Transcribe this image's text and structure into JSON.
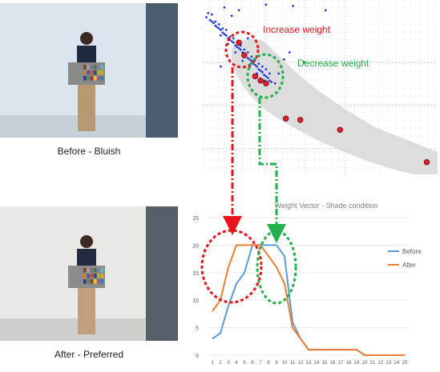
{
  "photos": [
    {
      "caption": "Before - Bluish",
      "tint": "#bcd0e2",
      "wall": "#dbe5ee",
      "floor": "#c6d0d8"
    },
    {
      "caption": "After - Preferred",
      "tint": "#d6d6d2",
      "wall": "#e8e8e4",
      "floor": "#cfcfcb"
    }
  ],
  "annotations": {
    "increase": "Increase weight",
    "decrease": "Decrease weight",
    "increase_color": "#e8141c",
    "decrease_color": "#22b14c"
  },
  "chart_data": [
    {
      "type": "scatter",
      "title": "",
      "xlabel": "",
      "ylabel": "",
      "series": [
        {
          "values_blue": "cluster"
        },
        {
          "red_points": [
            [
              0.3,
              0.33
            ],
            [
              0.33,
              0.42
            ],
            [
              0.39,
              0.57
            ],
            [
              0.42,
              0.6
            ],
            [
              0.45,
              0.62
            ],
            [
              0.56,
              0.87
            ],
            [
              0.64,
              0.88
            ],
            [
              0.86,
              0.95
            ],
            [
              1.34,
              1.18
            ]
          ]
        }
      ],
      "blue_points": [
        [
          0.12,
          0.15
        ],
        [
          0.14,
          0.17
        ],
        [
          0.15,
          0.18
        ],
        [
          0.16,
          0.19
        ],
        [
          0.17,
          0.21
        ],
        [
          0.18,
          0.22
        ],
        [
          0.19,
          0.23
        ],
        [
          0.2,
          0.24
        ],
        [
          0.21,
          0.26
        ],
        [
          0.22,
          0.27
        ],
        [
          0.23,
          0.28
        ],
        [
          0.24,
          0.3
        ],
        [
          0.25,
          0.31
        ],
        [
          0.26,
          0.32
        ],
        [
          0.27,
          0.33
        ],
        [
          0.28,
          0.35
        ],
        [
          0.29,
          0.36
        ],
        [
          0.3,
          0.37
        ],
        [
          0.31,
          0.38
        ],
        [
          0.32,
          0.4
        ],
        [
          0.33,
          0.41
        ],
        [
          0.34,
          0.42
        ],
        [
          0.35,
          0.44
        ],
        [
          0.36,
          0.45
        ],
        [
          0.37,
          0.46
        ],
        [
          0.38,
          0.48
        ],
        [
          0.39,
          0.49
        ],
        [
          0.4,
          0.5
        ],
        [
          0.41,
          0.52
        ],
        [
          0.42,
          0.53
        ],
        [
          0.43,
          0.54
        ],
        [
          0.44,
          0.56
        ],
        [
          0.45,
          0.57
        ],
        [
          0.46,
          0.58
        ],
        [
          0.47,
          0.6
        ],
        [
          0.48,
          0.61
        ],
        [
          0.13,
          0.12
        ],
        [
          0.15,
          0.13
        ],
        [
          0.17,
          0.18
        ],
        [
          0.19,
          0.2
        ],
        [
          0.21,
          0.23
        ],
        [
          0.23,
          0.24
        ],
        [
          0.25,
          0.29
        ],
        [
          0.27,
          0.3
        ],
        [
          0.29,
          0.33
        ],
        [
          0.31,
          0.35
        ],
        [
          0.33,
          0.38
        ],
        [
          0.35,
          0.4
        ],
        [
          0.37,
          0.43
        ],
        [
          0.39,
          0.45
        ],
        [
          0.41,
          0.48
        ],
        [
          0.43,
          0.5
        ],
        [
          0.45,
          0.52
        ],
        [
          0.47,
          0.55
        ],
        [
          0.2,
          0.28
        ],
        [
          0.24,
          0.34
        ],
        [
          0.28,
          0.4
        ],
        [
          0.32,
          0.46
        ],
        [
          0.36,
          0.5
        ],
        [
          0.4,
          0.55
        ],
        [
          0.44,
          0.6
        ],
        [
          0.3,
          0.1
        ],
        [
          0.22,
          0.08
        ],
        [
          0.45,
          0.06
        ],
        [
          0.6,
          0.07
        ],
        [
          0.78,
          0.1
        ],
        [
          0.55,
          0.45
        ],
        [
          0.66,
          0.47
        ],
        [
          0.5,
          0.62
        ],
        [
          0.52,
          0.55
        ],
        [
          0.58,
          0.4
        ],
        [
          0.2,
          0.5
        ],
        [
          0.35,
          0.3
        ],
        [
          0.26,
          0.14
        ]
      ],
      "xlim": [
        0.1,
        1.4
      ],
      "ylim": [
        0.05,
        1.25
      ]
    },
    {
      "type": "line",
      "title": "Weight Vector - Shade condition",
      "xlabel": "",
      "ylabel": "",
      "categories": [
        "1",
        "2",
        "3",
        "4",
        "5",
        "6",
        "7",
        "8",
        "9",
        "10",
        "11",
        "12",
        "13",
        "14",
        "15",
        "16",
        "17",
        "18",
        "19",
        "20",
        "21",
        "22",
        "23",
        "24",
        "25"
      ],
      "yticks": [
        "0",
        "5",
        "10",
        "15",
        "20",
        "25"
      ],
      "ylim": [
        0,
        25
      ],
      "series": [
        {
          "name": "Before",
          "color": "#5b9bd5",
          "values": [
            3,
            4,
            9,
            13,
            15,
            20,
            20,
            20,
            20,
            18,
            6,
            3,
            1,
            1,
            1,
            1,
            1,
            1,
            1,
            0,
            0,
            0,
            0,
            0,
            0
          ]
        },
        {
          "name": "After",
          "color": "#ed7d31",
          "values": [
            8,
            10,
            16,
            20,
            20,
            20,
            20,
            18,
            16,
            13,
            5,
            3,
            1,
            1,
            1,
            1,
            1,
            1,
            1,
            0,
            0,
            0,
            0,
            0,
            0
          ]
        }
      ],
      "legend": "right"
    }
  ]
}
